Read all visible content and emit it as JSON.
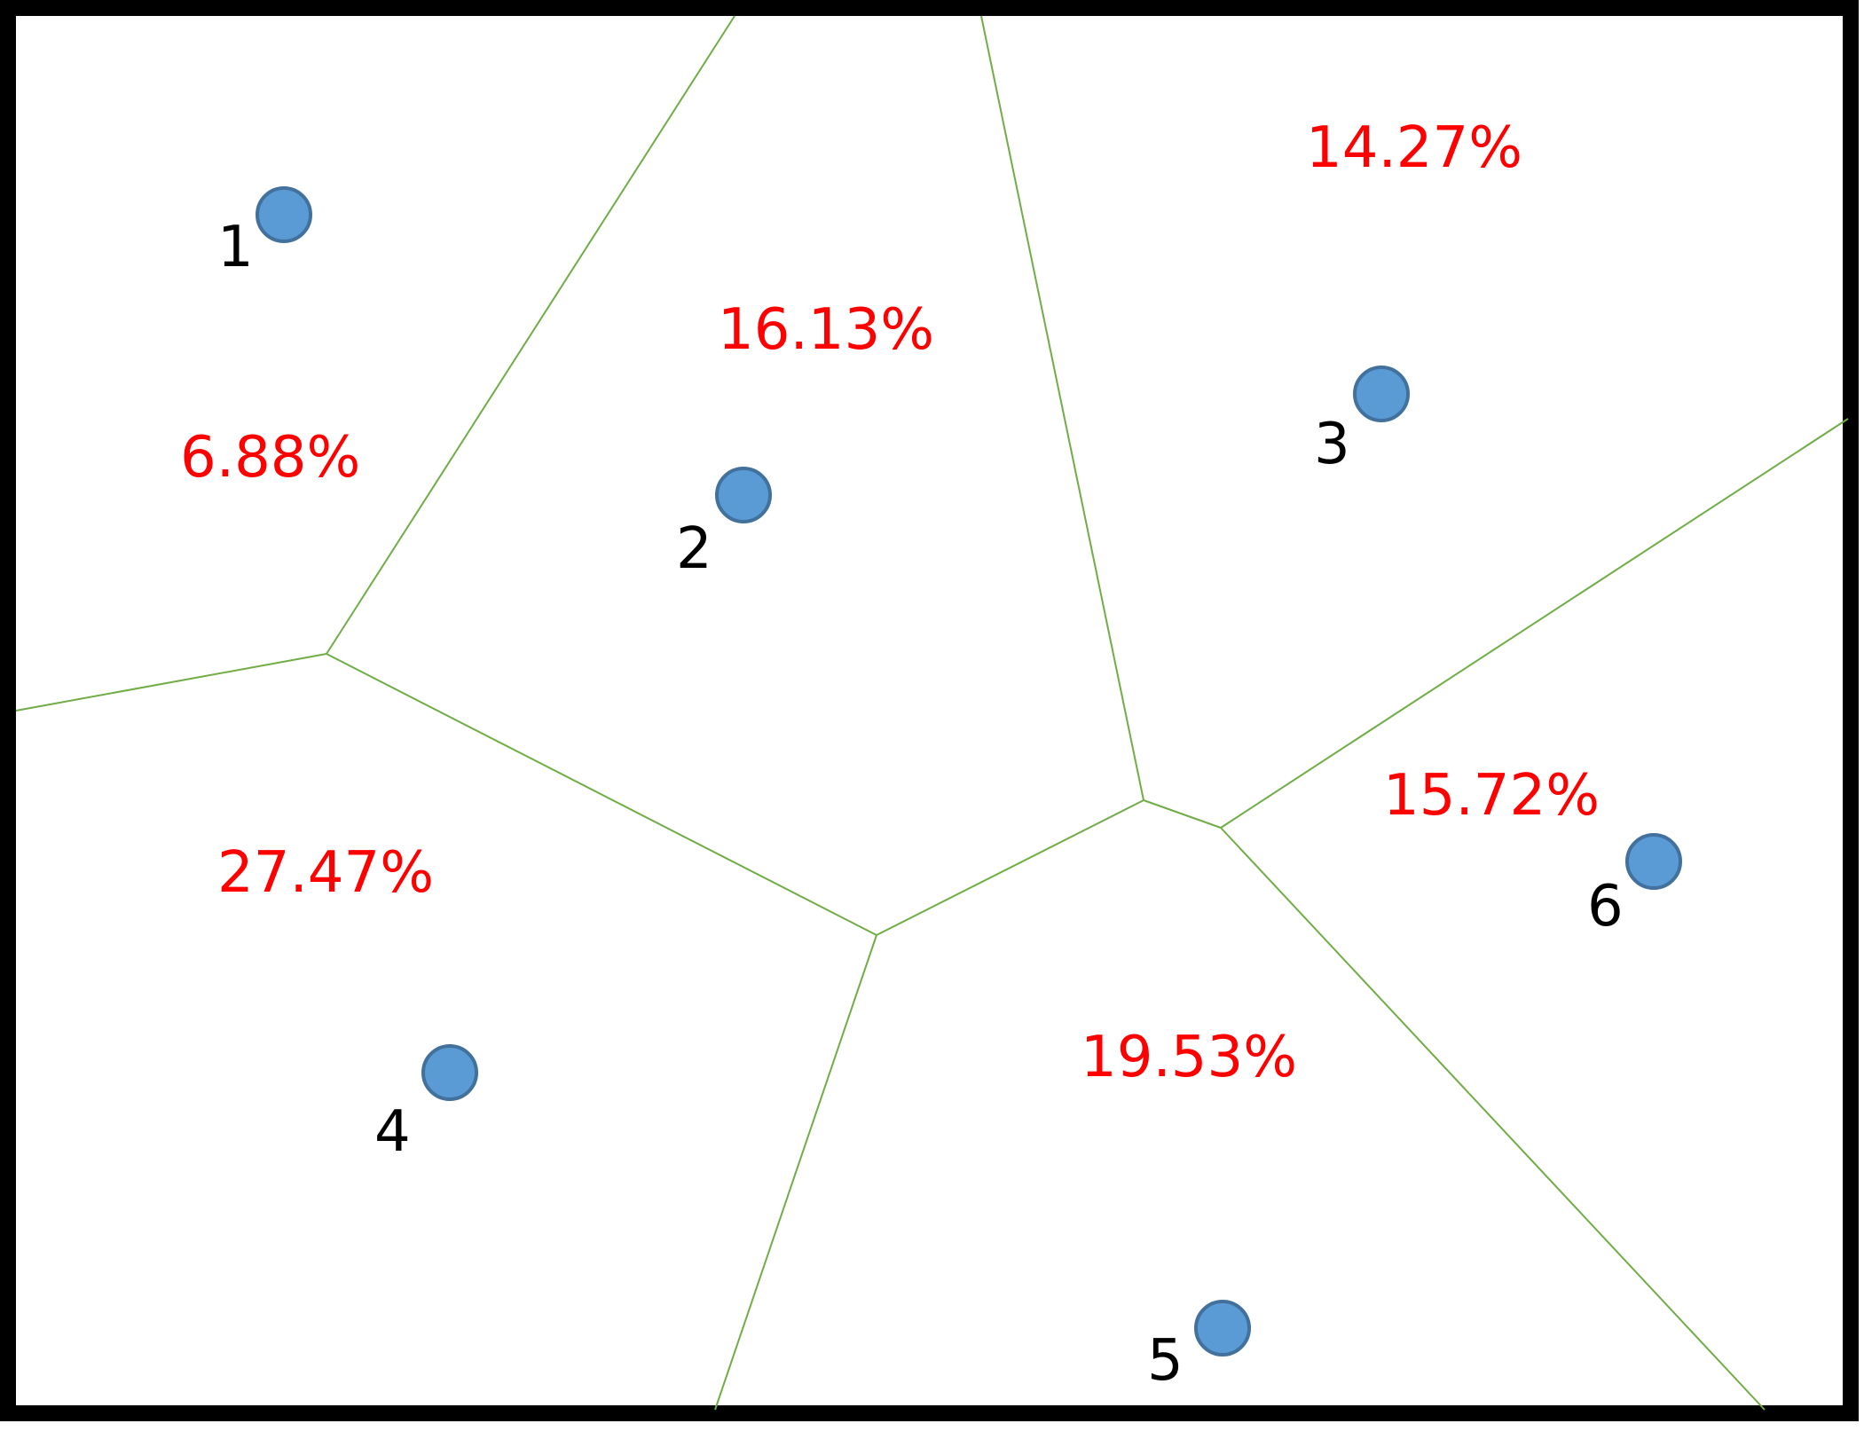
{
  "colors": {
    "frame": "#000000",
    "background": "#ffffff",
    "edge": "#70ad47",
    "site_fill": "#5b9bd5",
    "site_stroke": "#41719c",
    "area_text": "#ff0000",
    "site_text": "#000000"
  },
  "sites": [
    {
      "label": "1",
      "area": "6.88%"
    },
    {
      "label": "2",
      "area": "16.13%"
    },
    {
      "label": "3",
      "area": "14.27%"
    },
    {
      "label": "4",
      "area": "27.47%"
    },
    {
      "label": "5",
      "area": "19.53%"
    },
    {
      "label": "6",
      "area": "15.72%"
    }
  ]
}
